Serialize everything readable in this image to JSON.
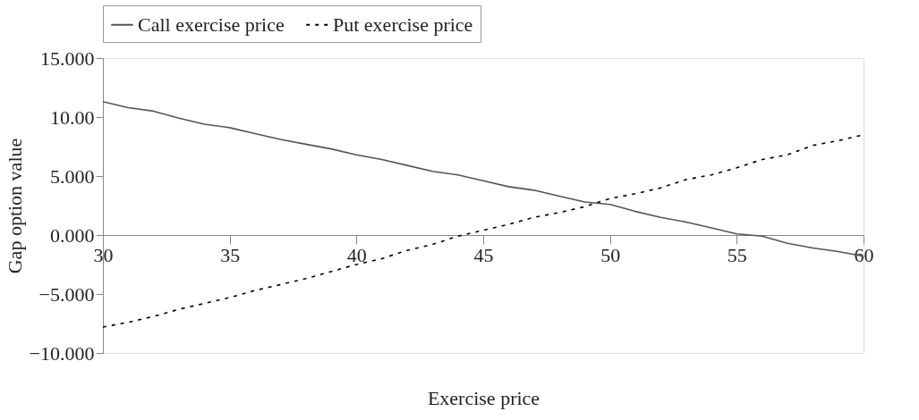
{
  "chart_data": {
    "type": "line",
    "xlabel": "Exercise price",
    "ylabel": "Gap option value",
    "x": [
      30,
      31,
      32,
      33,
      34,
      35,
      36,
      37,
      38,
      39,
      40,
      41,
      42,
      43,
      44,
      45,
      46,
      47,
      48,
      49,
      50,
      51,
      52,
      53,
      54,
      55,
      56,
      57,
      58,
      59,
      60
    ],
    "series": [
      {
        "name": "Call exercise price",
        "color": "#555555",
        "line_style": "solid",
        "values": [
          11.3,
          10.8,
          10.5,
          9.9,
          9.4,
          9.1,
          8.6,
          8.1,
          7.7,
          7.3,
          6.8,
          6.4,
          5.9,
          5.4,
          5.1,
          4.6,
          4.1,
          3.8,
          3.3,
          2.8,
          2.6,
          2.0,
          1.5,
          1.1,
          0.6,
          0.1,
          -0.1,
          -0.7,
          -1.1,
          -1.4,
          -1.8
        ]
      },
      {
        "name": "Put exercise price",
        "color": "#000000",
        "line_style": "dashed",
        "values": [
          -7.8,
          -7.4,
          -6.9,
          -6.3,
          -5.8,
          -5.3,
          -4.7,
          -4.2,
          -3.7,
          -3.1,
          -2.5,
          -2.0,
          -1.3,
          -0.8,
          -0.1,
          0.4,
          0.9,
          1.5,
          1.9,
          2.4,
          3.1,
          3.5,
          4.0,
          4.7,
          5.1,
          5.7,
          6.4,
          6.8,
          7.6,
          8.0,
          8.5
        ]
      }
    ],
    "xlim": [
      30,
      60
    ],
    "xticks": [
      30,
      35,
      40,
      45,
      50,
      55,
      60
    ],
    "ylim": [
      -10,
      15
    ],
    "yticks": [
      {
        "value": -10,
        "label": "−10.000"
      },
      {
        "value": -5,
        "label": "−5.000"
      },
      {
        "value": 0,
        "label": "0.000"
      },
      {
        "value": 5,
        "label": "5.000"
      },
      {
        "value": 10,
        "label": "10.00"
      },
      {
        "value": 15,
        "label": "15.000"
      }
    ],
    "grid": false,
    "legend": "top",
    "marker": "none"
  }
}
